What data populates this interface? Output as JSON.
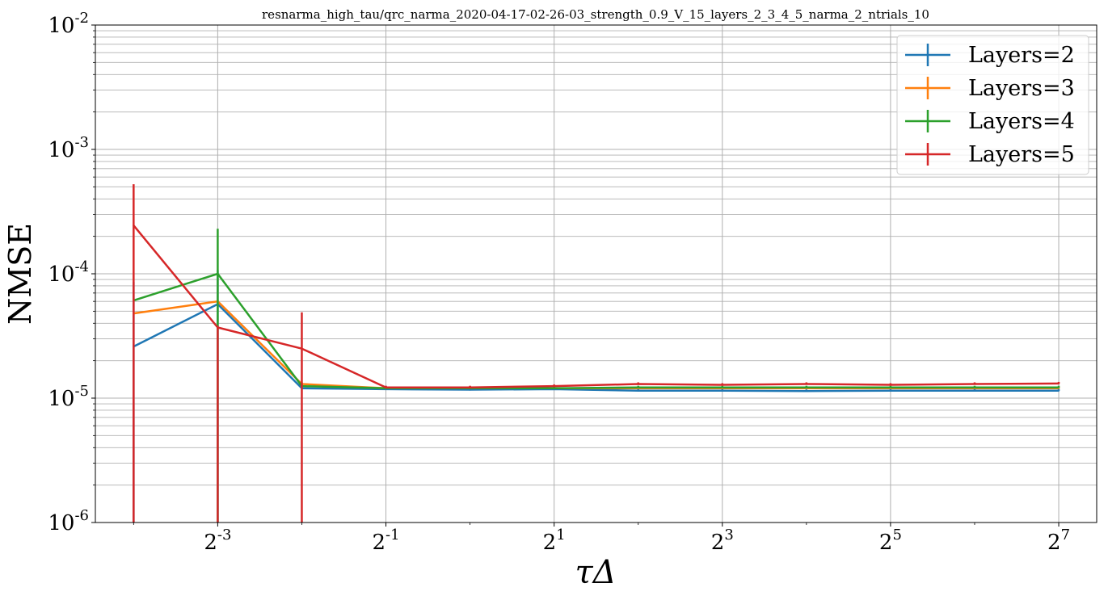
{
  "chart_data": {
    "type": "line",
    "title": "resnarma_high_tau/qrc_narma_2020-04-17-02-26-03_strength_0.9_V_15_layers_2_3_4_5_narma_2_ntrials_10",
    "xlabel": "τΔ",
    "ylabel": "NMSE",
    "xscale": "log2",
    "yscale": "log10",
    "x": [
      0.0625,
      0.125,
      0.25,
      0.5,
      1,
      2,
      4,
      8,
      16,
      32,
      64,
      128
    ],
    "xlim": [
      0.0456,
      175
    ],
    "ylim": [
      1e-06,
      0.01
    ],
    "xticks": [
      {
        "base": "2",
        "exp": "-3",
        "value": 0.125
      },
      {
        "base": "2",
        "exp": "-1",
        "value": 0.5
      },
      {
        "base": "2",
        "exp": "1",
        "value": 2
      },
      {
        "base": "2",
        "exp": "3",
        "value": 8
      },
      {
        "base": "2",
        "exp": "5",
        "value": 32
      },
      {
        "base": "2",
        "exp": "7",
        "value": 128
      }
    ],
    "yticks": [
      {
        "base": "10",
        "exp": "-6",
        "value": 1e-06
      },
      {
        "base": "10",
        "exp": "-5",
        "value": 1e-05
      },
      {
        "base": "10",
        "exp": "-4",
        "value": 0.0001
      },
      {
        "base": "10",
        "exp": "-3",
        "value": 0.001
      },
      {
        "base": "10",
        "exp": "-2",
        "value": 0.01
      }
    ],
    "grid": "major and minor",
    "legend_position": "top-right",
    "series": [
      {
        "name": "Layers=2",
        "color": "#1f77b4",
        "values": [
          2.6e-05,
          5.7e-05,
          1.2e-05,
          1.18e-05,
          1.17e-05,
          1.18e-05,
          1.15e-05,
          1.15e-05,
          1.14e-05,
          1.15e-05,
          1.15e-05,
          1.15e-05
        ],
        "err_low": [
          2.6e-05,
          5.7e-05,
          0,
          0,
          0,
          0,
          0,
          0,
          0,
          0,
          0,
          0
        ],
        "err_high": [
          6e-05,
          5e-05,
          0,
          0,
          0,
          0,
          0,
          0,
          0,
          0,
          0,
          0
        ]
      },
      {
        "name": "Layers=3",
        "color": "#ff7f0e",
        "values": [
          4.8e-05,
          6e-05,
          1.3e-05,
          1.2e-05,
          1.2e-05,
          1.2e-05,
          1.2e-05,
          1.2e-05,
          1.2e-05,
          1.2e-05,
          1.2e-05,
          1.2e-05
        ],
        "err_low": [
          0,
          0,
          0,
          0,
          0,
          0,
          0,
          0,
          0,
          0,
          0,
          0
        ],
        "err_high": [
          0,
          0,
          0,
          0,
          0,
          0,
          0,
          0,
          0,
          0,
          0,
          0
        ]
      },
      {
        "name": "Layers=4",
        "color": "#2ca02c",
        "values": [
          6.1e-05,
          0.0001,
          1.25e-05,
          1.2e-05,
          1.2e-05,
          1.2e-05,
          1.22e-05,
          1.22e-05,
          1.22e-05,
          1.22e-05,
          1.22e-05,
          1.22e-05
        ],
        "err_low": [
          0,
          9.9e-05,
          0,
          0,
          0,
          0,
          0,
          0,
          0,
          0,
          0,
          0
        ],
        "err_high": [
          0,
          0.00013,
          0,
          0,
          0,
          0,
          0,
          0,
          0,
          0,
          0,
          0
        ]
      },
      {
        "name": "Layers=5",
        "color": "#d62728",
        "values": [
          0.000245,
          3.7e-05,
          2.5e-05,
          1.22e-05,
          1.22e-05,
          1.25e-05,
          1.3e-05,
          1.28e-05,
          1.3e-05,
          1.28e-05,
          1.3e-05,
          1.31e-05
        ],
        "err_low": [
          0.000245,
          3.7e-05,
          2.5e-05,
          0,
          0,
          0,
          0,
          0,
          0,
          0,
          0,
          0
        ],
        "err_high": [
          0.00028,
          0,
          2.4e-05,
          0,
          0,
          0,
          0,
          0,
          0,
          0,
          0,
          0
        ]
      }
    ]
  }
}
